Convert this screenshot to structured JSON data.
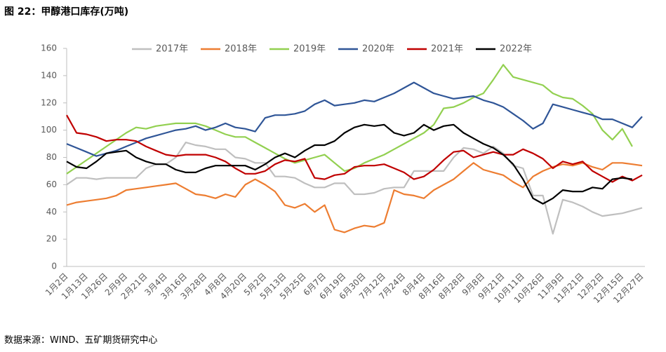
{
  "title": "图 22：甲醇港口库存(万吨)",
  "source": "数据来源：WIND、五矿期货研究中心",
  "chart_data": {
    "type": "line",
    "categories": [
      "1月2日",
      null,
      "1月13日",
      null,
      "1月26日",
      null,
      "2月9日",
      null,
      "2月21日",
      null,
      "3月4日",
      null,
      "3月16日",
      null,
      "3月28日",
      null,
      "4月8日",
      null,
      "4月20日",
      null,
      "5月2日",
      null,
      "5月13日",
      null,
      "5月25日",
      null,
      "6月7日",
      null,
      "6月19日",
      null,
      "6月30日",
      null,
      "7月12日",
      null,
      "7月24日",
      null,
      "8月4日",
      null,
      "8月16日",
      null,
      "8月28日",
      null,
      "9月8日",
      null,
      "9月21日",
      null,
      "10月11日",
      null,
      "10月26日",
      null,
      "11月9日",
      null,
      "11月21日",
      null,
      "12月2日",
      null,
      "12月15日",
      null,
      "12月27日"
    ],
    "series": [
      {
        "name": "2017年",
        "color": "#bfbfbf",
        "values": [
          60,
          65,
          65,
          64,
          65,
          65,
          65,
          65,
          72,
          75,
          75,
          80,
          91,
          89,
          88,
          86,
          86,
          80,
          79,
          76,
          76,
          66,
          66,
          65,
          61,
          58,
          58,
          61,
          61,
          53,
          53,
          54,
          57,
          58,
          58,
          70,
          70,
          70,
          70,
          80,
          87,
          86,
          83,
          88,
          83,
          74,
          72,
          52,
          52,
          24,
          49,
          47,
          44,
          40,
          37,
          38,
          39,
          41,
          43
        ]
      },
      {
        "name": "2018年",
        "color": "#ed7d31",
        "values": [
          45,
          47,
          48,
          49,
          50,
          52,
          56,
          57,
          58,
          59,
          60,
          61,
          57,
          53,
          52,
          50,
          53,
          51,
          60,
          64,
          60,
          55,
          45,
          43,
          46,
          40,
          45,
          27,
          25,
          28,
          30,
          29,
          32,
          56,
          53,
          52,
          50,
          56,
          60,
          64,
          70,
          76,
          71,
          69,
          67,
          62,
          58,
          66,
          70,
          73,
          75,
          74,
          76,
          73,
          71,
          76,
          76,
          75,
          74
        ]
      },
      {
        "name": "2019年",
        "color": "#92d050",
        "values": [
          68,
          73,
          78,
          83,
          88,
          93,
          98,
          102,
          101,
          103,
          104,
          105,
          105,
          105,
          103,
          100,
          97,
          95,
          95,
          91,
          87,
          83,
          79,
          76,
          78,
          80,
          82,
          76,
          70,
          72,
          76,
          79,
          82,
          86,
          90,
          94,
          98,
          104,
          116,
          117,
          120,
          124,
          127,
          137,
          148,
          139,
          137,
          135,
          133,
          127,
          124,
          123,
          118,
          112,
          100,
          93,
          101,
          88,
          null
        ]
      },
      {
        "name": "2020年",
        "color": "#2f5597",
        "values": [
          90,
          87,
          84,
          81,
          83,
          85,
          88,
          91,
          94,
          96,
          98,
          100,
          101,
          103,
          100,
          102,
          105,
          102,
          101,
          99,
          109,
          111,
          111,
          112,
          114,
          119,
          122,
          118,
          119,
          120,
          122,
          121,
          124,
          127,
          131,
          135,
          131,
          127,
          125,
          123,
          124,
          125,
          122,
          120,
          117,
          112,
          107,
          101,
          105,
          119,
          117,
          115,
          113,
          111,
          108,
          108,
          105,
          102,
          110
        ]
      },
      {
        "name": "2021年",
        "color": "#c00000",
        "values": [
          111,
          98,
          97,
          95,
          92,
          93,
          93,
          92,
          88,
          85,
          82,
          81,
          82,
          82,
          82,
          80,
          77,
          72,
          68,
          68,
          70,
          75,
          78,
          77,
          79,
          65,
          64,
          67,
          68,
          73,
          74,
          74,
          75,
          72,
          69,
          64,
          66,
          71,
          78,
          84,
          85,
          80,
          82,
          84,
          82,
          82,
          86,
          83,
          79,
          72,
          77,
          75,
          77,
          70,
          66,
          62,
          66,
          63,
          67
        ]
      },
      {
        "name": "2022年",
        "color": "#000000",
        "values": [
          77,
          73,
          72,
          77,
          83,
          84,
          85,
          80,
          77,
          75,
          75,
          71,
          69,
          69,
          72,
          74,
          74,
          74,
          74,
          71,
          75,
          80,
          83,
          80,
          85,
          89,
          89,
          92,
          98,
          102,
          104,
          103,
          104,
          98,
          96,
          98,
          104,
          100,
          103,
          104,
          98,
          94,
          90,
          87,
          82,
          75,
          64,
          50,
          46,
          50,
          56,
          55,
          55,
          58,
          57,
          64,
          65,
          64,
          null
        ]
      }
    ],
    "ylim": [
      0,
      160
    ],
    "yticks": [
      0,
      20,
      40,
      60,
      80,
      100,
      120,
      140,
      160
    ],
    "grid": false,
    "legend": "top"
  }
}
